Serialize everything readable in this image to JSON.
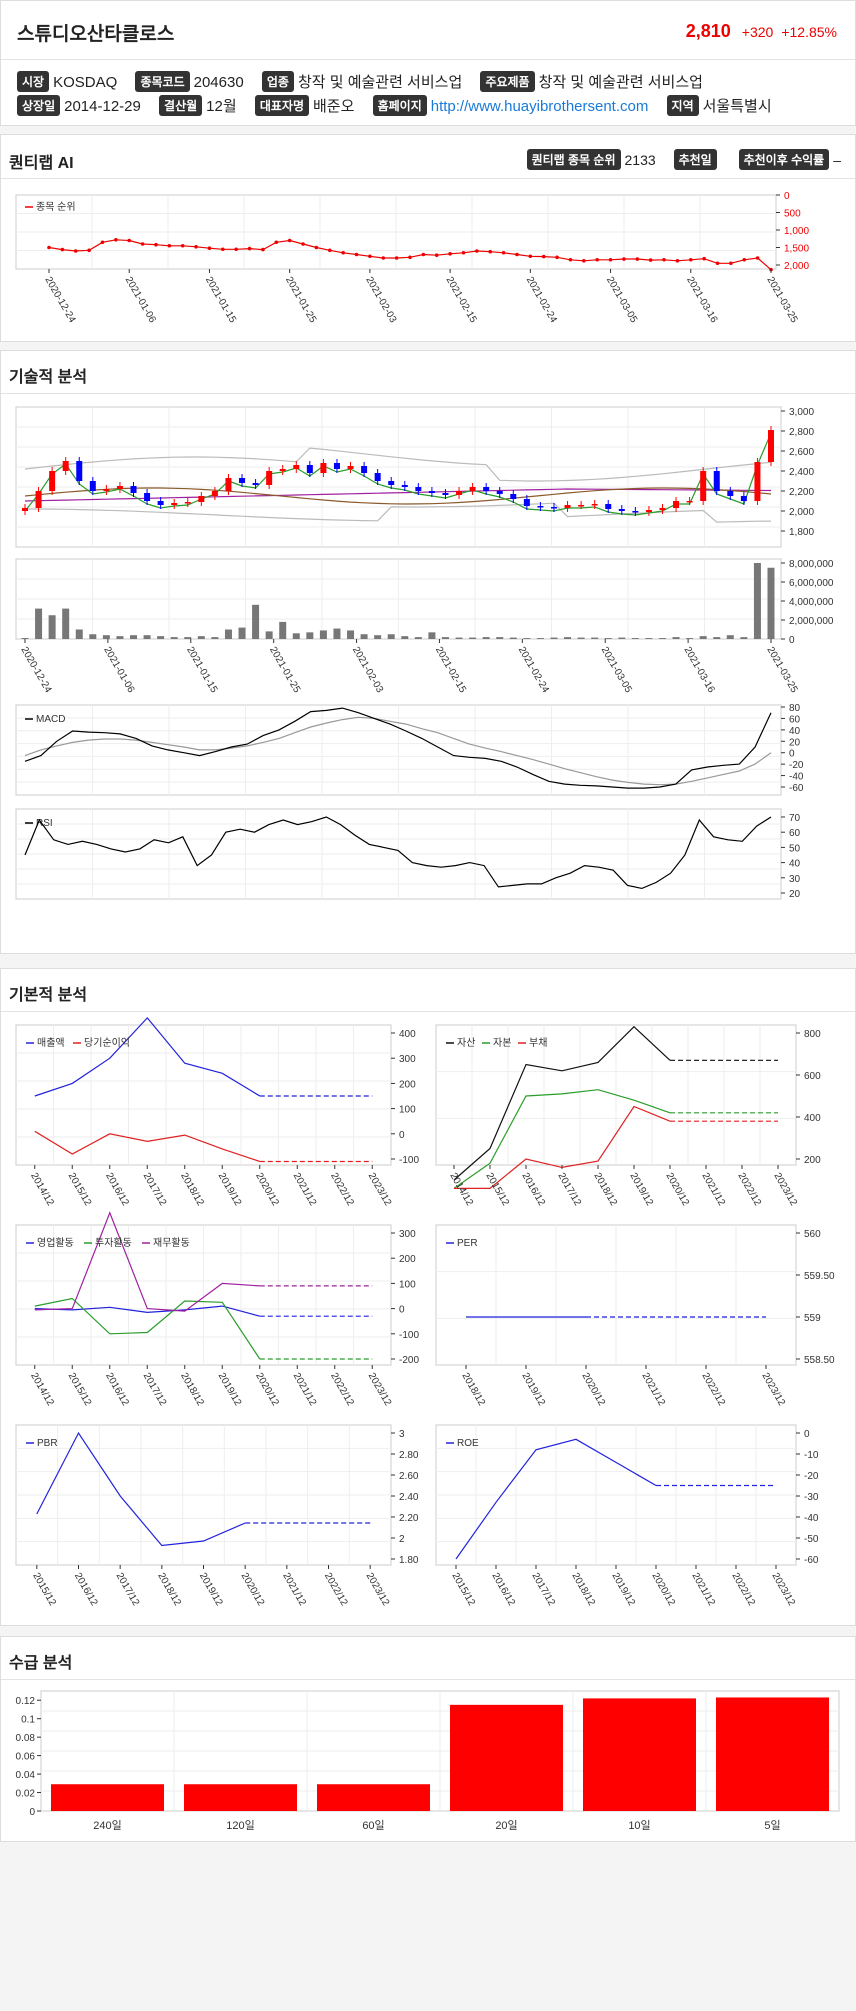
{
  "header": {
    "name": "스튜디오산타클로스",
    "price": "2,810",
    "change": "+320",
    "change_pct": "+12.85%",
    "info": {
      "market_label": "시장",
      "market": "KOSDAQ",
      "code_label": "종목코드",
      "code": "204630",
      "industry_label": "업종",
      "industry": "창작 및 예술관련 서비스업",
      "product_label": "주요제품",
      "product": "창작 및 예술관련 서비스업",
      "listed_label": "상장일",
      "listed": "2014-12-29",
      "settle_label": "결산월",
      "settle": "12월",
      "ceo_label": "대표자명",
      "ceo": "배준오",
      "home_label": "홈페이지",
      "home": "http://www.huayibrothersent.com",
      "region_label": "지역",
      "region": "서울특별시"
    }
  },
  "quantilab": {
    "title": "퀀티랩 AI",
    "rank_label": "퀀티랩 종목 순위",
    "rank": "2133",
    "rec_day_label": "추천일",
    "rec_return_label": "추천이후 수익률",
    "rec_return": "–",
    "legend": "종목 순위",
    "y_ticks": [
      "0",
      "500",
      "1,000",
      "1,500",
      "2,000"
    ],
    "x_ticks": [
      "2020-12-24",
      "2021-01-06",
      "2021-01-15",
      "2021-01-25",
      "2021-02-03",
      "2021-02-15",
      "2021-02-24",
      "2021-03-05",
      "2021-03-16",
      "2021-03-25"
    ]
  },
  "technical": {
    "title": "기술적 분석",
    "price_ticks": [
      "3,000",
      "2,800",
      "2,600",
      "2,400",
      "2,200",
      "2,000",
      "1,800"
    ],
    "vol_ticks": [
      "8,000,000",
      "6,000,000",
      "4,000,000",
      "2,000,000",
      "0"
    ],
    "x_ticks": [
      "2020-12-24",
      "2021-01-06",
      "2021-01-15",
      "2021-01-25",
      "2021-02-03",
      "2021-02-15",
      "2021-02-24",
      "2021-03-05",
      "2021-03-16",
      "2021-03-25"
    ],
    "macd_label": "MACD",
    "macd_ticks": [
      "80",
      "60",
      "40",
      "20",
      "0",
      "-20",
      "-40",
      "-60"
    ],
    "rsi_label": "RSI",
    "rsi_ticks": [
      "70",
      "60",
      "50",
      "40",
      "30",
      "20"
    ]
  },
  "fundamental": {
    "title": "기본적 분석",
    "years_a": [
      "2014/12",
      "2015/12",
      "2016/12",
      "2017/12",
      "2018/12",
      "2019/12",
      "2020/12",
      "2021/12",
      "2022/12",
      "2023/12"
    ],
    "years_b": [
      "2018/12",
      "2019/12",
      "2020/12",
      "2021/12",
      "2022/12",
      "2023/12"
    ],
    "years_c": [
      "2015/12",
      "2016/12",
      "2017/12",
      "2018/12",
      "2019/12",
      "2020/12",
      "2021/12",
      "2022/12",
      "2023/12"
    ],
    "c1": {
      "legend": [
        "매출액",
        "당기순이익"
      ],
      "ticks": [
        "400",
        "300",
        "200",
        "100",
        "0",
        "-100"
      ]
    },
    "c2": {
      "legend": [
        "자산",
        "자본",
        "부채"
      ],
      "ticks": [
        "800",
        "600",
        "400",
        "200"
      ]
    },
    "c3": {
      "legend": [
        "영업활동",
        "투자활동",
        "재무활동"
      ],
      "ticks": [
        "300",
        "200",
        "100",
        "0",
        "-100",
        "-200"
      ]
    },
    "c4": {
      "legend": [
        "PER"
      ],
      "ticks": [
        "560",
        "559.50",
        "559",
        "558.50"
      ]
    },
    "c5": {
      "legend": [
        "PBR"
      ],
      "ticks": [
        "3",
        "2.80",
        "2.60",
        "2.40",
        "2.20",
        "2",
        "1.80"
      ]
    },
    "c6": {
      "legend": [
        "ROE"
      ],
      "ticks": [
        "0",
        "-10",
        "-20",
        "-30",
        "-40",
        "-50",
        "-60"
      ]
    }
  },
  "supply": {
    "title": "수급 분석",
    "chart_data": {
      "type": "bar",
      "categories": [
        "240일",
        "120일",
        "60일",
        "20일",
        "10일",
        "5일"
      ],
      "values": [
        0.029,
        0.029,
        0.029,
        0.115,
        0.122,
        0.123
      ],
      "y_ticks": [
        "0.12",
        "0.1",
        "0.08",
        "0.06",
        "0.04",
        "0.02",
        "0"
      ],
      "ylim": [
        0,
        0.13
      ],
      "color": "#ff0000"
    }
  }
}
